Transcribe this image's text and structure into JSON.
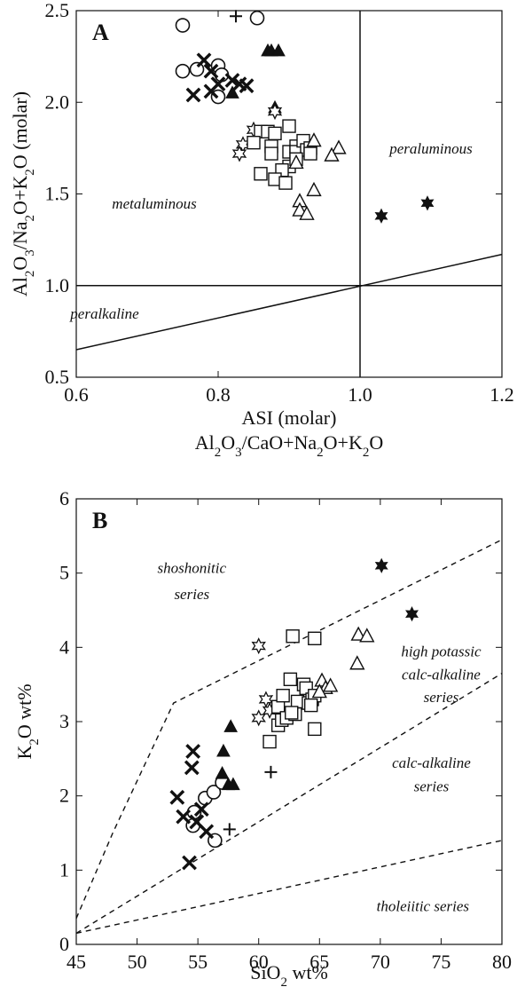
{
  "marker_styles": {
    "circle": "open-circle",
    "cross": "bold-x",
    "plus": "plus",
    "triangle_filled": "filled-triangle",
    "square_open": "open-square",
    "triangle_open": "open-triangle",
    "star_open": "open-star",
    "star_filled": "filled-star"
  },
  "chart_data": [
    {
      "panel": "A",
      "type": "scatter",
      "title": "",
      "xlabel": "ASI (molar)",
      "xlabel_sub": "Al2O3/CaO+Na2O+K2O",
      "ylabel": "Al2O3/Na2O+K2O (molar)",
      "xlim": [
        0.6,
        1.2
      ],
      "ylim": [
        0.5,
        2.5
      ],
      "x_ticks": [
        0.6,
        0.8,
        1.0,
        1.2
      ],
      "x_tick_labels": [
        "0.6",
        "0.8",
        "1.0",
        "1.2"
      ],
      "y_ticks": [
        0.5,
        1.0,
        1.5,
        2.0,
        2.5
      ],
      "y_tick_labels": [
        "0.5",
        "1.0",
        "1.5",
        "2.0",
        "2.5"
      ],
      "annotations": [
        {
          "text": "metaluminous",
          "x": 0.71,
          "y": 1.42
        },
        {
          "text": "peraluminous",
          "x": 1.1,
          "y": 1.72
        },
        {
          "text": "peralkaline",
          "x": 0.64,
          "y": 0.82
        }
      ],
      "lines": [
        {
          "style": "solid",
          "points": [
            [
              0.6,
              1.0
            ],
            [
              1.2,
              1.0
            ]
          ]
        },
        {
          "style": "solid",
          "points": [
            [
              1.0,
              0.5
            ],
            [
              1.0,
              2.5
            ]
          ]
        },
        {
          "style": "solid",
          "points": [
            [
              0.6,
              0.65
            ],
            [
              1.2,
              1.17
            ]
          ]
        }
      ],
      "series": [
        {
          "marker": "circle",
          "points": [
            [
              0.75,
              2.42
            ],
            [
              0.855,
              2.46
            ],
            [
              0.75,
              2.17
            ],
            [
              0.77,
              2.18
            ],
            [
              0.8,
              2.2
            ],
            [
              0.805,
              2.15
            ],
            [
              0.8,
              2.03
            ]
          ]
        },
        {
          "marker": "plus",
          "points": [
            [
              0.825,
              2.47
            ]
          ]
        },
        {
          "marker": "cross",
          "points": [
            [
              0.78,
              2.23
            ],
            [
              0.79,
              2.17
            ],
            [
              0.8,
              2.1
            ],
            [
              0.79,
              2.06
            ],
            [
              0.82,
              2.12
            ],
            [
              0.83,
              2.1
            ],
            [
              0.84,
              2.09
            ],
            [
              0.765,
              2.04
            ]
          ]
        },
        {
          "marker": "triangle_filled",
          "points": [
            [
              0.87,
              2.28
            ],
            [
              0.875,
              2.28
            ],
            [
              0.885,
              2.28
            ],
            [
              0.82,
              2.05
            ],
            [
              0.88,
              1.97
            ]
          ]
        },
        {
          "marker": "star_open",
          "points": [
            [
              0.85,
              1.85
            ],
            [
              0.835,
              1.77
            ],
            [
              0.83,
              1.72
            ],
            [
              0.88,
              1.95
            ]
          ]
        },
        {
          "marker": "square_open",
          "points": [
            [
              0.86,
              1.84
            ],
            [
              0.87,
              1.84
            ],
            [
              0.88,
              1.83
            ],
            [
              0.85,
              1.78
            ],
            [
              0.875,
              1.76
            ],
            [
              0.9,
              1.73
            ],
            [
              0.91,
              1.76
            ],
            [
              0.91,
              1.73
            ],
            [
              0.92,
              1.79
            ],
            [
              0.925,
              1.74
            ],
            [
              0.93,
              1.75
            ],
            [
              0.93,
              1.72
            ],
            [
              0.9,
              1.65
            ],
            [
              0.89,
              1.63
            ],
            [
              0.86,
              1.61
            ],
            [
              0.88,
              1.58
            ],
            [
              0.895,
              1.56
            ],
            [
              0.9,
              1.87
            ],
            [
              0.91,
              1.69
            ],
            [
              0.875,
              1.72
            ]
          ]
        },
        {
          "marker": "triangle_open",
          "points": [
            [
              0.935,
              1.79
            ],
            [
              0.97,
              1.75
            ],
            [
              0.96,
              1.71
            ],
            [
              0.91,
              1.67
            ],
            [
              0.935,
              1.52
            ],
            [
              0.915,
              1.46
            ],
            [
              0.915,
              1.41
            ],
            [
              0.925,
              1.39
            ]
          ]
        },
        {
          "marker": "star_filled",
          "points": [
            [
              1.03,
              1.38
            ],
            [
              1.095,
              1.45
            ]
          ]
        }
      ]
    },
    {
      "panel": "B",
      "type": "scatter",
      "title": "",
      "xlabel": "SiO2 wt%",
      "ylabel": "K2O wt%",
      "xlim": [
        45,
        80
      ],
      "ylim": [
        0,
        6
      ],
      "x_ticks": [
        45,
        50,
        55,
        60,
        65,
        70,
        75,
        80
      ],
      "x_tick_labels": [
        "45",
        "50",
        "55",
        "60",
        "65",
        "70",
        "75",
        "80"
      ],
      "y_ticks": [
        0,
        1,
        2,
        3,
        4,
        5,
        6
      ],
      "y_tick_labels": [
        "0",
        "1",
        "2",
        "3",
        "4",
        "5",
        "6"
      ],
      "annotations": [
        {
          "text": "shoshonitic",
          "x": 54.5,
          "y": 5.0
        },
        {
          "text": "series",
          "x": 54.5,
          "y": 4.65
        },
        {
          "text": "high potassic",
          "x": 75.0,
          "y": 3.88
        },
        {
          "text": "calc-alkaline",
          "x": 75.0,
          "y": 3.57
        },
        {
          "text": "series",
          "x": 75.0,
          "y": 3.26
        },
        {
          "text": "calc-alkaline",
          "x": 74.2,
          "y": 2.38
        },
        {
          "text": "series",
          "x": 74.2,
          "y": 2.06
        },
        {
          "text": "tholeiitic series",
          "x": 73.5,
          "y": 0.45
        }
      ],
      "lines": [
        {
          "style": "dashed",
          "points": [
            [
              45,
              0.35
            ],
            [
              48,
              1.5
            ],
            [
              53,
              3.25
            ],
            [
              80,
              5.45
            ]
          ]
        },
        {
          "style": "dashed",
          "points": [
            [
              45,
              0.15
            ],
            [
              80,
              3.65
            ]
          ]
        },
        {
          "style": "dashed",
          "points": [
            [
              45,
              0.15
            ],
            [
              80,
              1.4
            ]
          ]
        }
      ],
      "series": [
        {
          "marker": "circle",
          "points": [
            [
              56.4,
              1.4
            ],
            [
              54.6,
              1.6
            ],
            [
              54.7,
              1.78
            ],
            [
              55.6,
              1.97
            ],
            [
              56.3,
              2.05
            ],
            [
              57.0,
              2.18
            ]
          ]
        },
        {
          "marker": "plus",
          "points": [
            [
              61.0,
              2.32
            ],
            [
              57.6,
              1.55
            ]
          ]
        },
        {
          "marker": "cross",
          "points": [
            [
              53.3,
              1.98
            ],
            [
              53.8,
              1.72
            ],
            [
              54.5,
              2.38
            ],
            [
              54.6,
              2.6
            ],
            [
              55.3,
              1.82
            ],
            [
              54.9,
              1.65
            ],
            [
              55.7,
              1.52
            ],
            [
              54.3,
              1.1
            ]
          ]
        },
        {
          "marker": "triangle_filled",
          "points": [
            [
              57.7,
              2.93
            ],
            [
              57.1,
              2.6
            ],
            [
              57.0,
              2.3
            ],
            [
              57.5,
              2.15
            ],
            [
              57.9,
              2.15
            ]
          ]
        },
        {
          "marker": "star_open",
          "points": [
            [
              60.0,
              4.02
            ],
            [
              60.6,
              3.3
            ],
            [
              60.0,
              3.05
            ],
            [
              60.9,
              3.15
            ]
          ]
        },
        {
          "marker": "square_open",
          "points": [
            [
              62.8,
              4.15
            ],
            [
              64.6,
              4.12
            ],
            [
              60.9,
              2.73
            ],
            [
              61.6,
              3.2
            ],
            [
              61.6,
              2.95
            ],
            [
              61.9,
              3.02
            ],
            [
              62.3,
              3.05
            ],
            [
              62.6,
              3.57
            ],
            [
              62.0,
              3.35
            ],
            [
              63.2,
              3.27
            ],
            [
              63.7,
              3.5
            ],
            [
              63.9,
              3.45
            ],
            [
              64.1,
              3.25
            ],
            [
              64.4,
              3.3
            ],
            [
              64.6,
              3.35
            ],
            [
              64.3,
              3.22
            ],
            [
              64.6,
              2.9
            ],
            [
              63.0,
              3.1
            ],
            [
              62.7,
              3.12
            ]
          ]
        },
        {
          "marker": "triangle_open",
          "points": [
            [
              68.1,
              3.78
            ],
            [
              68.2,
              4.17
            ],
            [
              68.9,
              4.15
            ],
            [
              65.2,
              3.55
            ],
            [
              65.5,
              3.45
            ],
            [
              65.9,
              3.48
            ],
            [
              65.0,
              3.4
            ]
          ]
        },
        {
          "marker": "star_filled",
          "points": [
            [
              70.1,
              5.1
            ],
            [
              72.6,
              4.45
            ]
          ]
        }
      ]
    }
  ]
}
